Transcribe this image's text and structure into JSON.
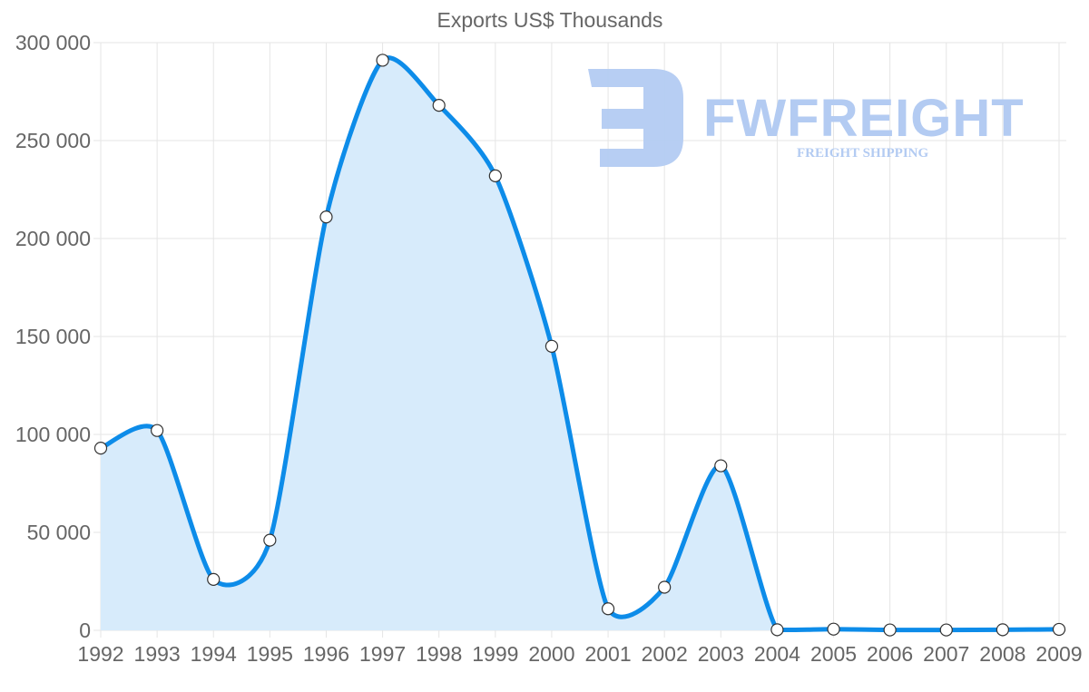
{
  "chart_data": {
    "type": "area",
    "title": "Exports US$ Thousands",
    "xlabel": "",
    "ylabel": "",
    "categories": [
      "1992",
      "1993",
      "1994",
      "1995",
      "1996",
      "1997",
      "1998",
      "1999",
      "2000",
      "2001",
      "2002",
      "2003",
      "2004",
      "2005",
      "2006",
      "2007",
      "2008",
      "2009"
    ],
    "series": [
      {
        "name": "Exports US$ Thousands",
        "values": [
          93000,
          102000,
          26000,
          46000,
          211000,
          291000,
          268000,
          232000,
          145000,
          11000,
          22000,
          84000,
          300,
          600,
          200,
          200,
          300,
          500
        ]
      }
    ],
    "ylim": [
      0,
      300000
    ],
    "yticks": [
      "0",
      "50 000",
      "100 000",
      "150 000",
      "200 000",
      "250 000",
      "300 000"
    ],
    "grid": true,
    "legend": "none",
    "colors": {
      "line": "#0d8ce9",
      "fill": "#d7ebfb",
      "point_fill": "#ffffff",
      "point_stroke": "#333333"
    }
  },
  "watermark": {
    "brand": "FWFREIGHT",
    "tagline": "FREIGHT SHIPPING",
    "color": "#b3cbf2"
  }
}
